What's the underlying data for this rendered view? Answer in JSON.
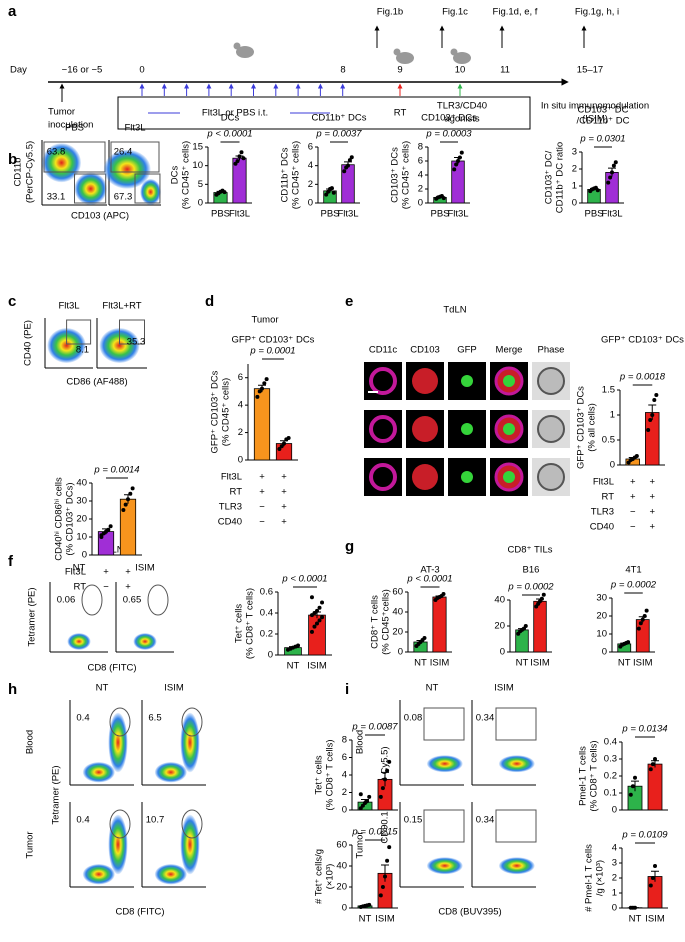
{
  "panel_labels": [
    "a",
    "b",
    "c",
    "d",
    "e",
    "f",
    "g",
    "h",
    "i"
  ],
  "timeline": {
    "day_label": "Day",
    "days": [
      "−16 or −5",
      "0",
      "8",
      "9",
      "10",
      "11",
      "15–17"
    ],
    "figs": [
      "Fig.1b",
      "Fig.1c",
      "Fig.1d, e, f",
      "Fig.1g, h, i"
    ],
    "tumor": [
      "Tumor",
      "inoculation"
    ],
    "flt3l": "Flt3L or PBS i.t.",
    "rt": "RT",
    "agonists": [
      "TLR3/CD40",
      "agonists"
    ],
    "isim": [
      "In situ immunomodulation",
      "(ISIM)"
    ]
  },
  "flow": {
    "b": {
      "columns": [
        "PBS",
        "Flt3L"
      ],
      "y_label": [
        "CD11b",
        "(PerCP-Cy5.5)"
      ],
      "x_label": "CD103 (APC)",
      "gates": [
        [
          "63.8",
          "33.1"
        ],
        [
          "26.4",
          "67.3"
        ]
      ]
    },
    "c": {
      "columns": [
        "Flt3L",
        "Flt3L+RT"
      ],
      "y_label": "CD40 (PE)",
      "x_label": "CD86 (AF488)",
      "gates": [
        "8.1",
        "35.3"
      ]
    },
    "f": {
      "title": "TdLN",
      "columns": [
        "NT",
        "ISIM"
      ],
      "y_label": "Tetramer (PE)",
      "x_label": "CD8 (FITC)",
      "gates": [
        "0.06",
        "0.65"
      ]
    },
    "h": {
      "columns": [
        "NT",
        "ISIM"
      ],
      "rows": [
        "Blood",
        "Tumor"
      ],
      "y_label": "Tetramer (PE)",
      "x_label": "CD8 (FITC)",
      "gates": [
        [
          "0.4",
          "6.5"
        ],
        [
          "0.4",
          "10.7"
        ]
      ]
    },
    "i": {
      "columns": [
        "NT",
        "ISIM"
      ],
      "rows": [
        "Blood",
        "Tumor"
      ],
      "y_label": "CD90.1 (PerCP-Cy5.5)",
      "x_label": "CD8 (BUV395)",
      "gates": [
        [
          "0.08",
          "0.34"
        ],
        [
          "0.15",
          "0.34"
        ]
      ]
    }
  },
  "micro": {
    "title": "TdLN",
    "columns": [
      "CD11c",
      "CD103",
      "GFP",
      "Merge",
      "Phase"
    ]
  },
  "panel_texts": {
    "d_title": "Tumor",
    "g_title": "CD8⁺ TILs"
  },
  "chart_data": [
    {
      "type": "bar",
      "title": "DCs",
      "ylabel": [
        "DCs",
        "(% CD45⁺ cells)"
      ],
      "categories": [
        "PBS",
        "Flt3L"
      ],
      "colors": [
        "#2db34a",
        "#a02ed6"
      ],
      "values": [
        2.8,
        12
      ],
      "errors": [
        0.3,
        0.6
      ],
      "points": [
        [
          2.2,
          2.6,
          3.0,
          3.3,
          2.9
        ],
        [
          10.5,
          11.2,
          12.5,
          13.6,
          12.0
        ]
      ],
      "ylim": [
        0,
        15
      ],
      "yticks": [
        0,
        5,
        10,
        15
      ],
      "p": "p < 0.0001"
    },
    {
      "type": "bar",
      "title": "CD11b⁺ DCs",
      "ylabel": [
        "CD11b⁺ DCs",
        "(% CD45⁺ cells)"
      ],
      "categories": [
        "PBS",
        "Flt3L"
      ],
      "colors": [
        "#2db34a",
        "#a02ed6"
      ],
      "values": [
        1.3,
        4.1
      ],
      "errors": [
        0.2,
        0.3
      ],
      "points": [
        [
          0.9,
          1.2,
          1.5,
          1.6,
          1.1
        ],
        [
          3.4,
          3.8,
          4.0,
          4.6,
          4.9
        ]
      ],
      "ylim": [
        0,
        6
      ],
      "yticks": [
        0,
        2,
        4,
        6
      ],
      "p": "p = 0.0037"
    },
    {
      "type": "bar",
      "title": "CD103⁺ DCs",
      "ylabel": [
        "CD103⁺ DCs",
        "(% CD45⁺ cells)"
      ],
      "categories": [
        "PBS",
        "Flt3L"
      ],
      "colors": [
        "#2db34a",
        "#a02ed6"
      ],
      "values": [
        0.8,
        6.0
      ],
      "errors": [
        0.1,
        0.5
      ],
      "points": [
        [
          0.6,
          0.8,
          0.9,
          1.0,
          0.7
        ],
        [
          4.8,
          5.5,
          6.0,
          6.5,
          7.2
        ]
      ],
      "ylim": [
        0,
        8
      ],
      "yticks": [
        0,
        2,
        4,
        6,
        8
      ],
      "p": "p = 0.0003"
    },
    {
      "type": "bar",
      "title": [
        "CD103⁺ DC",
        "/CD11b⁺ DC"
      ],
      "ylabel": [
        "CD103⁺ DC/",
        "CD11b⁺ DC ratio"
      ],
      "categories": [
        "PBS",
        "Flt3L"
      ],
      "colors": [
        "#2db34a",
        "#a02ed6"
      ],
      "values": [
        0.8,
        1.8
      ],
      "errors": [
        0.05,
        0.25
      ],
      "points": [
        [
          0.7,
          0.8,
          0.85,
          0.9,
          0.75
        ],
        [
          1.2,
          1.5,
          1.8,
          2.2,
          2.4
        ]
      ],
      "ylim": [
        0,
        3
      ],
      "yticks": [
        0,
        1,
        2,
        3
      ],
      "p": "p = 0.0301"
    },
    {
      "type": "bar",
      "ylabel": [
        "CD40ʰⁱ CD86ʰⁱ cells",
        "(% CD103⁺ DCs)"
      ],
      "colors": [
        "#a02ed6",
        "#f7941d"
      ],
      "values": [
        13,
        31
      ],
      "errors": [
        1.5,
        2.5
      ],
      "points": [
        [
          10,
          12,
          13,
          14,
          16,
          11
        ],
        [
          25,
          28,
          31,
          34,
          37
        ]
      ],
      "ylim": [
        0,
        40
      ],
      "yticks": [
        0,
        10,
        20,
        30,
        40
      ],
      "p": "p = 0.0014",
      "conditions": [
        {
          "name": "Flt3L",
          "marks": [
            "+",
            "+"
          ]
        },
        {
          "name": "RT",
          "marks": [
            "−",
            "+"
          ]
        }
      ]
    },
    {
      "type": "bar",
      "title": "GFP⁺ CD103⁺ DCs",
      "ylabel": [
        "GFP⁺ CD103⁺ DCs",
        "(% CD45⁺ cells)"
      ],
      "colors": [
        "#f7941d",
        "#e8201c"
      ],
      "values": [
        5.2,
        1.2
      ],
      "errors": [
        0.25,
        0.2
      ],
      "points": [
        [
          4.6,
          5.0,
          5.2,
          5.6,
          5.9
        ],
        [
          0.8,
          1.0,
          1.2,
          1.5,
          1.6
        ]
      ],
      "ylim": [
        0,
        7
      ],
      "yticks": [
        0,
        2,
        4,
        6
      ],
      "p": "p = 0.0001",
      "conditions": [
        {
          "name": "Flt3L",
          "marks": [
            "+",
            "+"
          ]
        },
        {
          "name": "RT",
          "marks": [
            "+",
            "+"
          ]
        },
        {
          "name": "TLR3",
          "marks": [
            "−",
            "+"
          ]
        },
        {
          "name": "CD40",
          "marks": [
            "−",
            "+"
          ]
        }
      ]
    },
    {
      "type": "bar",
      "title": "GFP⁺ CD103⁺ DCs",
      "ylabel": [
        "GFP⁺ CD103⁺ DCs",
        "(% all cells)"
      ],
      "colors": [
        "#f7941d",
        "#e8201c"
      ],
      "values": [
        0.12,
        1.05
      ],
      "errors": [
        0.03,
        0.15
      ],
      "points": [
        [
          0.05,
          0.1,
          0.12,
          0.15,
          0.18
        ],
        [
          0.7,
          0.9,
          1.0,
          1.3,
          1.4
        ]
      ],
      "ylim": [
        0,
        1.5
      ],
      "yticks": [
        0,
        0.5,
        1,
        1.5
      ],
      "p": "p = 0.0018",
      "conditions": [
        {
          "name": "Flt3L",
          "marks": [
            "+",
            "+"
          ]
        },
        {
          "name": "RT",
          "marks": [
            "+",
            "+"
          ]
        },
        {
          "name": "TLR3",
          "marks": [
            "−",
            "+"
          ]
        },
        {
          "name": "CD40",
          "marks": [
            "−",
            "+"
          ]
        }
      ]
    },
    {
      "type": "bar",
      "ylabel": [
        "Tet⁺ cells",
        "(% CD8⁺ T cells)"
      ],
      "categories": [
        "NT",
        "ISIM"
      ],
      "colors": [
        "#2db34a",
        "#e8201c"
      ],
      "values": [
        0.07,
        0.38
      ],
      "errors": [
        0.01,
        0.03
      ],
      "points": [
        [
          0.05,
          0.06,
          0.07,
          0.08,
          0.09
        ],
        [
          0.22,
          0.27,
          0.3,
          0.33,
          0.36,
          0.38,
          0.4,
          0.42,
          0.45,
          0.5,
          0.55
        ]
      ],
      "ylim": [
        0,
        0.6
      ],
      "yticks": [
        0,
        0.2,
        0.4,
        0.6
      ],
      "p": "p < 0.0001"
    },
    {
      "type": "bar",
      "title": "AT-3",
      "ylabel": [
        "CD8⁺ T cells",
        "(% CD45⁺cells)"
      ],
      "categories": [
        "NT",
        "ISIM"
      ],
      "colors": [
        "#2db34a",
        "#e8201c"
      ],
      "values": [
        10,
        55
      ],
      "errors": [
        1.5,
        1
      ],
      "points": [
        [
          6,
          8,
          10,
          12,
          14
        ],
        [
          52,
          54,
          55,
          56,
          58
        ]
      ],
      "ylim": [
        0,
        60
      ],
      "yticks": [
        0,
        20,
        40,
        60
      ],
      "p": "p < 0.0001"
    },
    {
      "type": "bar",
      "title": "B16",
      "categories": [
        "NT",
        "ISIM"
      ],
      "colors": [
        "#2db34a",
        "#e8201c"
      ],
      "values": [
        17,
        39
      ],
      "errors": [
        1,
        1.8
      ],
      "points": [
        [
          14,
          16,
          17,
          18,
          20
        ],
        [
          35,
          37,
          39,
          41,
          44
        ]
      ],
      "ylim": [
        0,
        40
      ],
      "yticks": [
        0,
        20,
        40
      ],
      "p": "p = 0.0002"
    },
    {
      "type": "bar",
      "title": "4T1",
      "categories": [
        "NT",
        "ISIM"
      ],
      "colors": [
        "#2db34a",
        "#e8201c"
      ],
      "values": [
        4.5,
        18
      ],
      "errors": [
        0.4,
        1.6
      ],
      "points": [
        [
          3,
          4,
          4.5,
          5,
          5.5
        ],
        [
          13,
          16,
          18,
          20,
          23
        ]
      ],
      "ylim": [
        0,
        30
      ],
      "yticks": [
        0,
        10,
        20,
        30
      ],
      "p": "p = 0.0002"
    },
    {
      "type": "bar",
      "ylabel": [
        "Tet⁺ cells",
        "(% CD8⁺ T cells)"
      ],
      "categories": [
        null,
        null
      ],
      "colors": [
        "#2db34a",
        "#e8201c"
      ],
      "values": [
        0.9,
        3.5
      ],
      "errors": [
        0.3,
        0.8
      ],
      "points": [
        [
          0.2,
          0.5,
          0.8,
          1.0,
          1.5,
          1.8
        ],
        [
          1.5,
          2.5,
          3.5,
          4.5,
          5.5
        ]
      ],
      "ylim": [
        0,
        8
      ],
      "yticks": [
        0,
        2,
        4,
        6,
        8
      ],
      "p": "p = 0.0087"
    },
    {
      "type": "bar",
      "ylabel": [
        "# Tet⁺ cells/g",
        "(×10³)"
      ],
      "categories": [
        "NT",
        "ISIM"
      ],
      "colors": [
        "#2db34a",
        "#e8201c"
      ],
      "values": [
        2,
        33
      ],
      "errors": [
        0.4,
        8
      ],
      "points": [
        [
          1,
          1.5,
          2,
          2.5,
          3
        ],
        [
          12,
          20,
          30,
          45,
          58
        ]
      ],
      "ylim": [
        0,
        60
      ],
      "yticks": [
        0,
        20,
        40,
        60
      ],
      "p": "p = 0.0215"
    },
    {
      "type": "bar",
      "ylabel": [
        "Pmel-1 T cells",
        "(% CD8⁺ T cells)"
      ],
      "categories": [
        null,
        null
      ],
      "colors": [
        "#2db34a",
        "#e8201c"
      ],
      "values": [
        0.14,
        0.27
      ],
      "errors": [
        0.03,
        0.02
      ],
      "points": [
        [
          0.09,
          0.14,
          0.19
        ],
        [
          0.24,
          0.27,
          0.3
        ]
      ],
      "ylim": [
        0,
        0.4
      ],
      "yticks": [
        0,
        0.1,
        0.2,
        0.3,
        0.4
      ],
      "p": "p = 0.0134"
    },
    {
      "type": "bar",
      "ylabel": [
        "# Pmel-1 T cells",
        "/g (×10³)"
      ],
      "categories": [
        "NT",
        "ISIM"
      ],
      "colors": [
        "#2db34a",
        "#e8201c"
      ],
      "values": [
        0.02,
        2.1
      ],
      "errors": [
        0,
        0.35
      ],
      "points": [
        [
          0.02,
          0.02,
          0.02
        ],
        [
          1.5,
          2.0,
          2.8
        ]
      ],
      "ylim": [
        0,
        4
      ],
      "yticks": [
        0,
        1,
        2,
        3,
        4
      ],
      "p": "p = 0.0109"
    }
  ]
}
